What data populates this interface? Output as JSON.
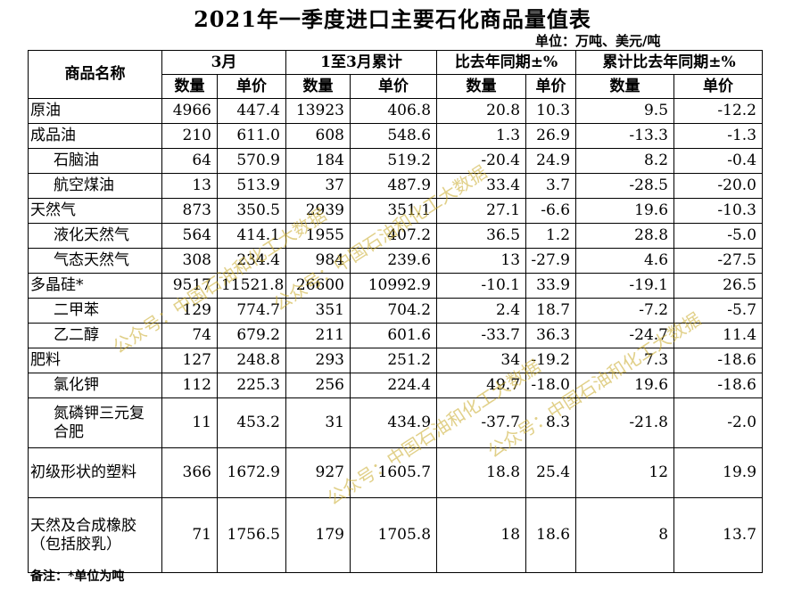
{
  "title": "2021年一季度进口主要石化商品量值表",
  "unit": "单位：万吨、美元/吨",
  "header": {
    "product_name": "商品名称",
    "groups": [
      "3月",
      "1至3月累计",
      "比去年同期±%",
      "累计比去年同期±%"
    ],
    "sub": [
      "数量",
      "单价",
      "数量",
      "单价",
      "数量",
      "单价",
      "数量",
      "单价"
    ]
  },
  "rows": [
    {
      "name": "原油",
      "indent": false,
      "v": [
        "4966",
        "447.4",
        "13923",
        "406.8",
        "20.8",
        "10.3",
        "9.5",
        "-12.2"
      ]
    },
    {
      "name": "成品油",
      "indent": false,
      "v": [
        "210",
        "611.0",
        "608",
        "548.6",
        "1.3",
        "26.9",
        "-13.3",
        "-1.3"
      ]
    },
    {
      "name": "石脑油",
      "indent": true,
      "v": [
        "64",
        "570.9",
        "184",
        "519.2",
        "-20.4",
        "24.9",
        "8.2",
        "-0.4"
      ]
    },
    {
      "name": "航空煤油",
      "indent": true,
      "v": [
        "13",
        "513.9",
        "37",
        "487.9",
        "33.4",
        "3.7",
        "-28.5",
        "-20.0"
      ]
    },
    {
      "name": "天然气",
      "indent": false,
      "v": [
        "873",
        "350.5",
        "2939",
        "351.1",
        "27.1",
        "-6.6",
        "19.6",
        "-10.3"
      ]
    },
    {
      "name": "液化天然气",
      "indent": true,
      "v": [
        "564",
        "414.1",
        "1955",
        "407.2",
        "36.5",
        "1.2",
        "28.8",
        "-5.0"
      ]
    },
    {
      "name": "气态天然气",
      "indent": true,
      "v": [
        "308",
        "234.4",
        "984",
        "239.6",
        "13",
        "-27.9",
        "4.6",
        "-27.5"
      ]
    },
    {
      "name": "多晶硅*",
      "indent": false,
      "v": [
        "9517",
        "11521.8",
        "26600",
        "10992.9",
        "-10.1",
        "33.9",
        "-19.1",
        "26.5"
      ]
    },
    {
      "name": "二甲苯",
      "indent": true,
      "v": [
        "129",
        "774.7",
        "351",
        "704.2",
        "2.4",
        "18.7",
        "-7.2",
        "-5.7"
      ]
    },
    {
      "name": "乙二醇",
      "indent": true,
      "v": [
        "74",
        "679.2",
        "211",
        "601.6",
        "-33.7",
        "36.3",
        "-24.7",
        "11.4"
      ]
    },
    {
      "name": "肥料",
      "indent": false,
      "v": [
        "127",
        "248.8",
        "293",
        "251.2",
        "34",
        "-19.2",
        "7.3",
        "-18.6"
      ]
    },
    {
      "name": "氯化钾",
      "indent": true,
      "v": [
        "112",
        "225.3",
        "256",
        "224.4",
        "49.7",
        "-18.0",
        "19.6",
        "-18.6"
      ]
    },
    {
      "name": "氮磷钾三元复合肥",
      "indent": true,
      "v": [
        "11",
        "453.2",
        "31",
        "434.9",
        "-37.7",
        "8.3",
        "-21.8",
        "-2.0"
      ]
    },
    {
      "name": "初级形状的塑料",
      "indent": false,
      "v": [
        "366",
        "1672.9",
        "927",
        "1605.7",
        "18.8",
        "25.4",
        "12",
        "19.9"
      ]
    },
    {
      "name": "天然及合成橡胶（包括胶乳）",
      "indent": false,
      "v": [
        "71",
        "1756.5",
        "179",
        "1705.8",
        "18",
        "18.6",
        "8",
        "13.7"
      ]
    }
  ],
  "note": "备注：*单位为吨",
  "watermarks": [
    "公众号：中国石油和化工大数据",
    "公众号：中国石油和化工大数据",
    "公众号：中国石油和化工大数据",
    "公众号：中国石油和化工大数据"
  ]
}
